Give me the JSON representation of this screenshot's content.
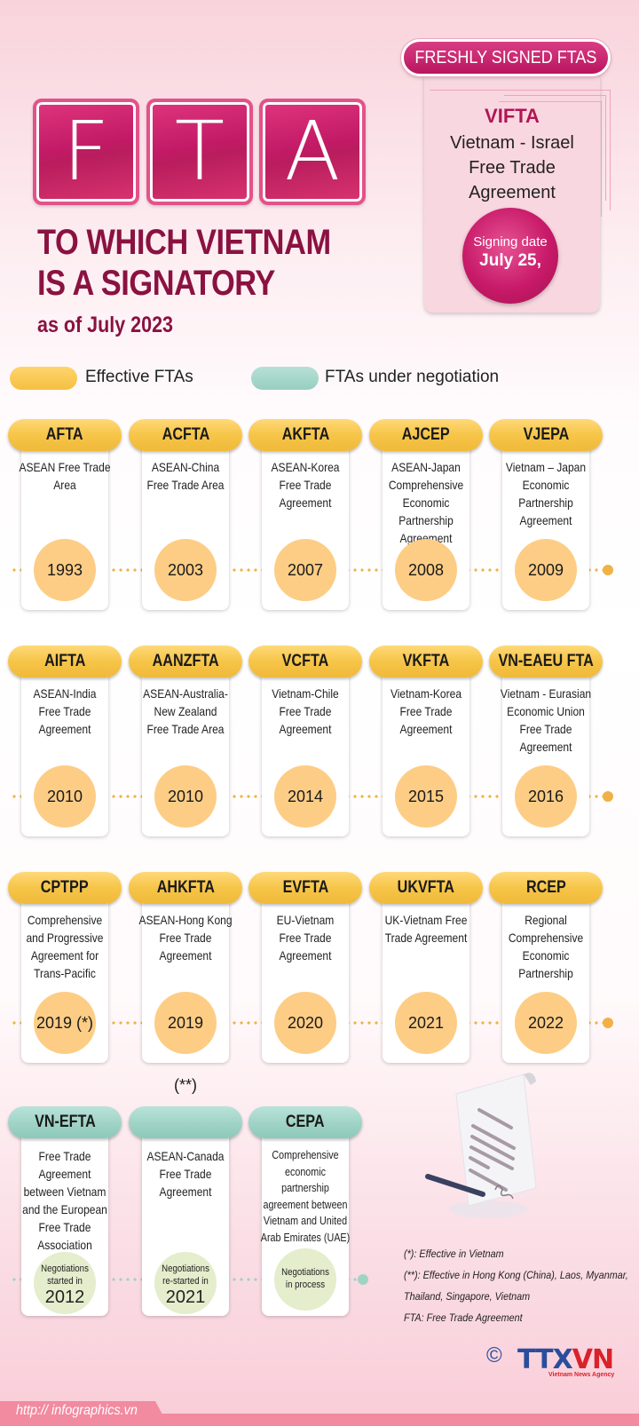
{
  "header": {
    "tiles": [
      "F",
      "T",
      "A"
    ],
    "headline_line1": "TO WHICH VIETNAM",
    "headline_line2": "IS A SIGNATORY",
    "as_of": "as of July 2023"
  },
  "fresh": {
    "badge": "FRESHLY SIGNED FTAS",
    "code": "VIFTA",
    "name_lines": [
      "Vietnam - Israel",
      "Free Trade",
      "Agreement"
    ],
    "signing_label": "Signing date",
    "signing_date": "July 25,"
  },
  "legend": {
    "effective": {
      "label": "Effective FTAs",
      "color": "#f6c548"
    },
    "negotiation": {
      "label": "FTAs under negotiation",
      "color": "#9fd3c6"
    }
  },
  "rows": [
    {
      "status": "effective",
      "items": [
        {
          "code": "AFTA",
          "desc": [
            "ASEAN Free Trade",
            "Area"
          ],
          "year": "1993"
        },
        {
          "code": "ACFTA",
          "desc": [
            "ASEAN-China",
            "Free Trade Area"
          ],
          "year": "2003"
        },
        {
          "code": "AKFTA",
          "desc": [
            "ASEAN-Korea",
            "Free Trade",
            "Agreement"
          ],
          "year": "2007"
        },
        {
          "code": "AJCEP",
          "desc": [
            "ASEAN-Japan",
            "Comprehensive",
            "Economic",
            "Partnership",
            "Agreement"
          ],
          "year": "2008"
        },
        {
          "code": "VJEPA",
          "desc": [
            "Vietnam – Japan",
            "Economic",
            "Partnership",
            "Agreement"
          ],
          "year": "2009"
        }
      ]
    },
    {
      "status": "effective",
      "items": [
        {
          "code": "AIFTA",
          "desc": [
            "ASEAN-India",
            "Free Trade",
            "Agreement"
          ],
          "year": "2010"
        },
        {
          "code": "AANZFTA",
          "desc": [
            "ASEAN-Australia-",
            "New Zealand",
            "Free Trade Area"
          ],
          "year": "2010"
        },
        {
          "code": "VCFTA",
          "desc": [
            "Vietnam-Chile",
            "Free Trade",
            "Agreement"
          ],
          "year": "2014"
        },
        {
          "code": "VKFTA",
          "desc": [
            "Vietnam-Korea",
            "Free Trade",
            "Agreement"
          ],
          "year": "2015"
        },
        {
          "code": "VN-EAEU FTA",
          "desc": [
            "Vietnam - Eurasian",
            "Economic Union",
            "Free Trade",
            "Agreement"
          ],
          "year": "2016"
        }
      ]
    },
    {
      "status": "effective",
      "items": [
        {
          "code": "CPTPP",
          "desc": [
            "Comprehensive",
            "and Progressive",
            "Agreement for",
            "Trans-Pacific"
          ],
          "year": "2019 (*)"
        },
        {
          "code": "AHKFTA",
          "desc": [
            "ASEAN-Hong Kong",
            "Free Trade",
            "Agreement"
          ],
          "year": "2019 (**)"
        },
        {
          "code": "EVFTA",
          "desc": [
            "EU-Vietnam",
            "Free Trade",
            "Agreement"
          ],
          "year": "2020"
        },
        {
          "code": "UKVFTA",
          "desc": [
            "UK-Vietnam Free",
            "Trade Agreement"
          ],
          "year": "2021"
        },
        {
          "code": "RCEP",
          "desc": [
            "Regional",
            "Comprehensive",
            "Economic",
            "Partnership"
          ],
          "year": "2022"
        }
      ]
    }
  ],
  "negotiations": [
    {
      "code": "VN-EFTA",
      "desc": [
        "Free Trade",
        "Agreement",
        "between Vietnam",
        "and the European",
        "Free Trade",
        "Association"
      ],
      "status_lines": [
        "Negotiations",
        "started in"
      ],
      "year": "2012"
    },
    {
      "code": "",
      "desc": [
        "ASEAN-Canada",
        "Free Trade",
        "Agreement"
      ],
      "status_lines": [
        "Negotiations",
        "re-started in"
      ],
      "year": "2021"
    },
    {
      "code": "CEPA",
      "desc": [
        "Comprehensive",
        "economic",
        "partnership",
        "agreement between",
        "Vietnam and United",
        "Arab Emirates (UAE)"
      ],
      "status_lines": [
        "Negotiations",
        "in process"
      ],
      "year": ""
    }
  ],
  "notes": [
    "(*): Effective in Vietnam",
    "(**): Effective in Hong Kong (China), Laos, Myanmar,",
    "Thailand, Singapore, Vietnam",
    "FTA: Free Trade Agreement"
  ],
  "footer": {
    "url": "http:// infographics.vn",
    "copyright": "©",
    "logo_a": "TTX",
    "logo_b": "VN",
    "logo_sub": "Vietnam News Agency"
  }
}
